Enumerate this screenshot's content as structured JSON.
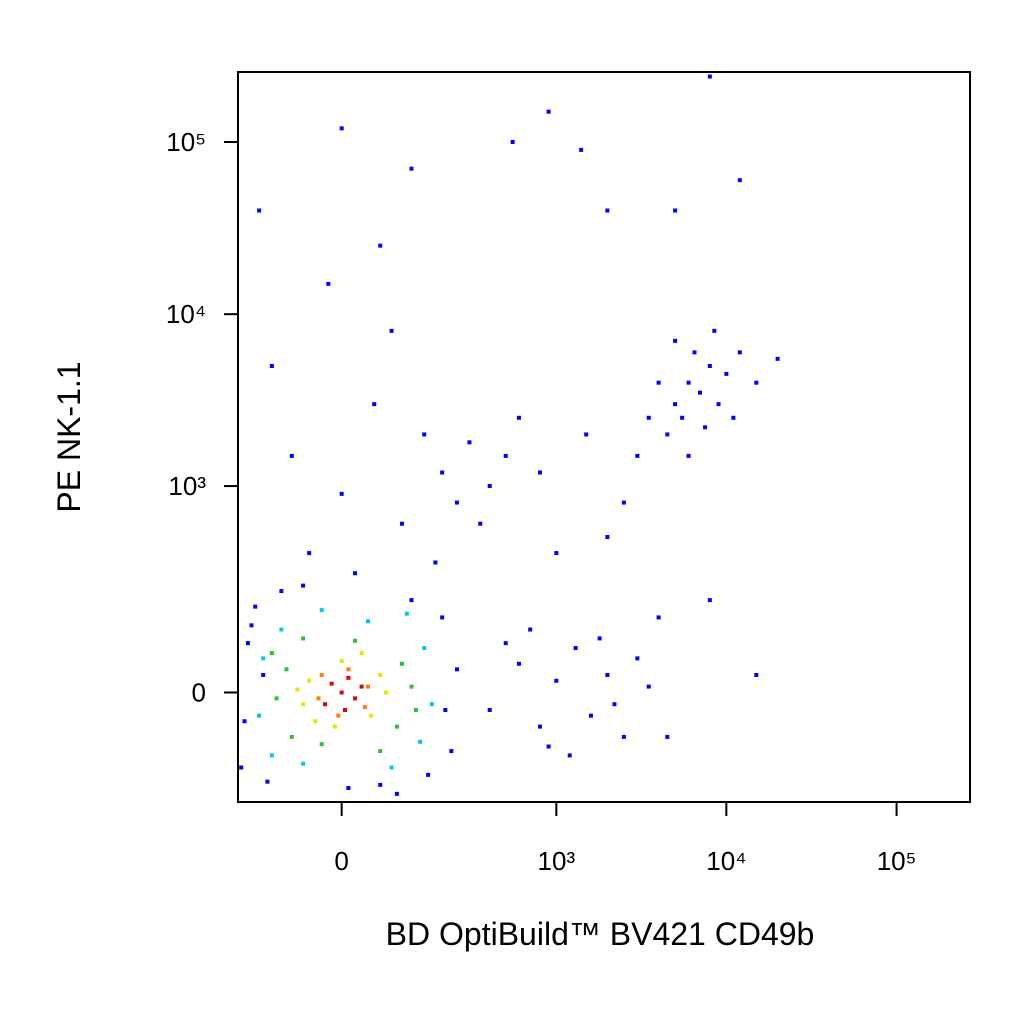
{
  "chart_data": {
    "type": "scatter",
    "x_label": "BD OptiBuild™ BV421 CD49b",
    "y_label": "PE NK-1.1",
    "xscale": "biexponential",
    "yscale": "biexponential",
    "xlim": [
      -210,
      270000
    ],
    "ylim": [
      -260,
      255000
    ],
    "xticks": [
      0,
      {
        "value": 1000,
        "label": "10³"
      },
      {
        "value": 10000,
        "label": "10⁴"
      },
      {
        "value": 100000,
        "label": "10⁵"
      }
    ],
    "yticks": [
      0,
      {
        "value": 1000,
        "label": "10³"
      },
      {
        "value": 10000,
        "label": "10⁴"
      },
      {
        "value": 100000,
        "label": "10⁵"
      }
    ],
    "grid": false,
    "series": [
      {
        "color": "#0000ff",
        "x": [
          -190,
          -180,
          200,
          230,
          -160,
          10,
          250,
          -200,
          120,
          -50,
          100,
          0,
          200,
          -80,
          150,
          50,
          250,
          -120,
          80,
          300,
          -20,
          60,
          -150,
          0,
          120,
          400,
          350,
          20,
          180,
          400,
          600,
          800,
          1000,
          1300,
          1600,
          2000,
          2500,
          3000,
          3500,
          700,
          1200,
          500,
          900,
          1800,
          2200,
          4000,
          4500,
          8000,
          15000,
          500,
          800,
          1500,
          2500,
          3000,
          3500,
          4000,
          2000,
          1000,
          600,
          5000,
          6000,
          7000,
          8000,
          5500,
          9000,
          6500,
          10000,
          4500,
          7500,
          12000,
          5000,
          8500,
          11000,
          6000,
          15000,
          20000,
          900,
          550,
          1400,
          2000,
          5000,
          12000,
          8000,
          -130,
          -170,
          160,
          -100,
          90,
          -60,
          210,
          -140,
          60
        ],
        "values": [
          -50,
          90,
          150,
          -110,
          180,
          -210,
          40,
          -150,
          200,
          400,
          600,
          900,
          1200,
          1500,
          2000,
          3000,
          800,
          5000,
          8000,
          1800,
          15000,
          25000,
          40000,
          120000,
          70000,
          1000,
          600,
          300,
          350,
          -30,
          50,
          -60,
          20,
          80,
          -40,
          30,
          -80,
          60,
          10,
          120,
          -120,
          90,
          -100,
          100,
          -20,
          150,
          -80,
          200,
          30,
          1500,
          1200,
          2000,
          800,
          1500,
          2500,
          4000,
          500,
          400,
          2500,
          3000,
          4000,
          3500,
          5000,
          2500,
          3000,
          6000,
          4500,
          2000,
          2200,
          6000,
          7000,
          8000,
          2500,
          1500,
          4000,
          5500,
          150000,
          100000,
          90000,
          40000,
          40000,
          60000,
          240000,
          -190,
          130,
          -170,
          230,
          -230,
          250,
          -30,
          30,
          -200
        ]
      },
      {
        "color": "#00c8e6",
        "x": [
          -140,
          140,
          150,
          -120,
          40,
          -60,
          170,
          -150,
          80,
          -100,
          110,
          -30
        ],
        "values": [
          60,
          -90,
          80,
          -120,
          140,
          -140,
          -20,
          -40,
          -150,
          120,
          160,
          170
        ]
      },
      {
        "color": "#30c030",
        "x": [
          -90,
          90,
          100,
          -80,
          20,
          -30,
          120,
          -110,
          60,
          -60,
          130,
          -120
        ],
        "values": [
          40,
          -60,
          50,
          -80,
          95,
          -95,
          10,
          -10,
          -110,
          100,
          -30,
          70
        ]
      },
      {
        "color": "#e6e600",
        "x": [
          -50,
          45,
          60,
          -40,
          0,
          -10,
          70,
          -70,
          30,
          -60
        ],
        "values": [
          20,
          -40,
          30,
          -50,
          55,
          -60,
          0,
          5,
          70,
          -20
        ]
      },
      {
        "color": "#ff8000",
        "x": [
          -30,
          35,
          40,
          -35,
          10,
          -5
        ],
        "values": [
          30,
          -25,
          10,
          -10,
          40,
          -40
        ]
      },
      {
        "color": "#e8000a",
        "x": [
          0,
          20,
          -15,
          10,
          -25,
          30,
          5
        ],
        "values": [
          0,
          -10,
          15,
          25,
          -20,
          10,
          -30
        ]
      }
    ]
  }
}
